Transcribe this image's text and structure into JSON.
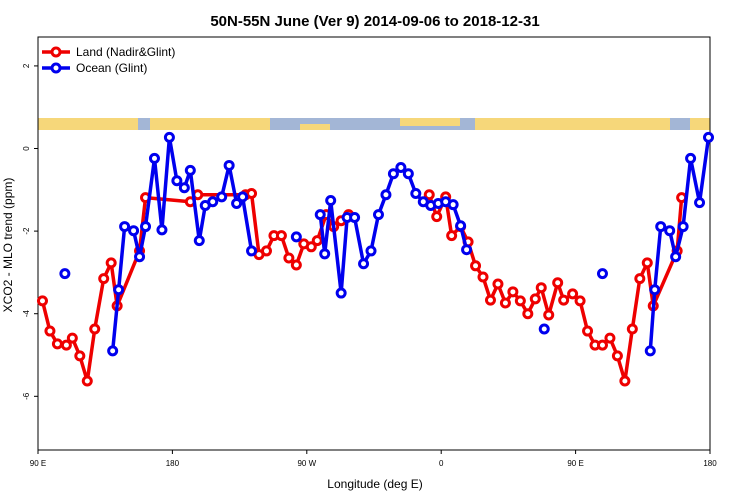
{
  "chart_data": {
    "type": "line",
    "title": "50N-55N June (Ver 9)   2014-09-06 to 2018-12-31",
    "x_label": "Longitude (deg E)",
    "y_label": "XCO2 - MLO trend (ppm)",
    "xlim": [
      90,
      540
    ],
    "xticks": [
      {
        "value": 90,
        "label": "90 E"
      },
      {
        "value": 180,
        "label": "180"
      },
      {
        "value": 270,
        "label": "90 W"
      },
      {
        "value": 360,
        "label": "0"
      },
      {
        "value": 450,
        "label": "90 E"
      },
      {
        "value": 540,
        "label": "180"
      }
    ],
    "ylim": [
      -7.3,
      2.7
    ],
    "yticks": [
      -6,
      -4,
      -2,
      0,
      2
    ],
    "legend": "top-left",
    "series": [
      {
        "name": "Land (Nadir&Glint)",
        "color": "#ee0000",
        "x": [
          93,
          98,
          103,
          109,
          113,
          118,
          123,
          128,
          134,
          139,
          143,
          158,
          162,
          192,
          197,
          229,
          233,
          238,
          243,
          248,
          253,
          258,
          263,
          268,
          273,
          277,
          283,
          288,
          293,
          298,
          null,
          352,
          357,
          363,
          367,
          373,
          378,
          383,
          388,
          393,
          398,
          403,
          408,
          413,
          418,
          423,
          427,
          432,
          438,
          442,
          448,
          453,
          458,
          463,
          468,
          473,
          478,
          483,
          488,
          493,
          498,
          502,
          518,
          521
        ],
        "values": [
          -3.69,
          -4.42,
          -4.73,
          -4.76,
          -4.59,
          -5.02,
          -5.63,
          -4.37,
          -3.15,
          -2.77,
          -3.81,
          -2.48,
          -1.19,
          -1.29,
          -1.12,
          -1.12,
          -1.09,
          -2.57,
          -2.48,
          -2.11,
          -2.11,
          -2.65,
          -2.82,
          -2.31,
          -2.38,
          -2.23,
          -1.6,
          -1.89,
          -1.75,
          -1.6,
          null,
          -1.12,
          -1.65,
          -1.17,
          -2.11,
          -1.89,
          -2.26,
          -2.84,
          -3.11,
          -3.67,
          -3.28,
          -3.74,
          -3.47,
          -3.69,
          -4.0,
          -3.64,
          -3.37,
          -4.03,
          -3.25,
          -3.67,
          -3.52,
          -3.69,
          -4.42,
          -4.76,
          -4.76,
          -4.59,
          -5.02,
          -5.63,
          -4.37,
          -3.15,
          -2.77,
          -3.81,
          -2.48,
          -1.19
        ]
      },
      {
        "name": "Ocean (Glint)",
        "color": "#0000ee",
        "x": [
          108,
          null,
          140,
          144,
          148,
          154,
          158,
          162,
          168,
          173,
          178,
          183,
          188,
          192,
          198,
          202,
          207,
          213,
          218,
          223,
          227,
          233,
          null,
          263,
          null,
          279,
          282,
          286,
          293,
          297,
          302,
          308,
          313,
          318,
          323,
          328,
          333,
          338,
          343,
          348,
          353,
          358,
          363,
          368,
          373,
          377,
          null,
          429,
          null,
          468,
          null,
          500,
          503,
          507,
          513,
          517,
          522,
          527,
          533,
          539
        ],
        "values": [
          -3.03,
          null,
          -4.9,
          -3.42,
          -1.89,
          -1.99,
          -2.62,
          -1.89,
          -0.24,
          -1.97,
          0.27,
          -0.78,
          -0.95,
          -0.53,
          -2.23,
          -1.38,
          -1.29,
          -1.17,
          -0.41,
          -1.33,
          -1.17,
          -2.48,
          null,
          -2.14,
          null,
          -1.6,
          -2.55,
          -1.26,
          -3.5,
          -1.67,
          -1.67,
          -2.79,
          -2.48,
          -1.6,
          -1.12,
          -0.61,
          -0.46,
          -0.61,
          -1.09,
          -1.29,
          -1.38,
          -1.33,
          -1.29,
          -1.36,
          -1.87,
          -2.45,
          null,
          -4.37,
          null,
          -3.03,
          null,
          -4.9,
          -3.42,
          -1.89,
          -1.99,
          -2.62,
          -1.89,
          -0.24,
          -1.31,
          0.27
        ]
      }
    ]
  }
}
